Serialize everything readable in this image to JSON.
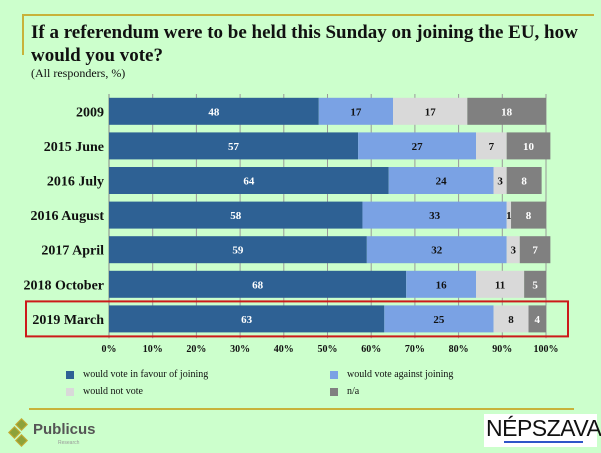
{
  "header": {
    "title": "If a referendum were to be held this Sunday on joining the EU, how would you vote?",
    "subtitle": "(All responders, %)"
  },
  "chart_data": {
    "type": "bar",
    "orientation": "horizontal",
    "stacked": true,
    "title": "If a referendum were to be held this Sunday on joining the EU, how would you vote?",
    "subtitle": "(All responders, %)",
    "categories": [
      "2009",
      "2015 June",
      "2016 July",
      "2016 August",
      "2017 April",
      "2018 October",
      "2019 March"
    ],
    "series": [
      {
        "name": "would vote in favour of  joining",
        "color": "#2e6194",
        "label_color": "#ffffff",
        "values": [
          48,
          57,
          64,
          58,
          59,
          68,
          63
        ]
      },
      {
        "name": "would vote against joining",
        "color": "#7aa2e4",
        "label_color": "#111111",
        "values": [
          17,
          27,
          24,
          33,
          32,
          16,
          25
        ]
      },
      {
        "name": "would not vote",
        "color": "#d9d9d9",
        "label_color": "#111111",
        "values": [
          17,
          7,
          3,
          1,
          3,
          11,
          8
        ]
      },
      {
        "name": "n/a",
        "color": "#808080",
        "label_color": "#ffffff",
        "values": [
          18,
          10,
          8,
          8,
          7,
          5,
          4
        ]
      }
    ],
    "xlim": [
      0,
      100
    ],
    "xticks": [
      "0%",
      "10%",
      "20%",
      "30%",
      "40%",
      "50%",
      "60%",
      "70%",
      "80%",
      "90%",
      "100%"
    ],
    "grid": true,
    "legend_position": "bottom",
    "highlighted_category": "2019 March",
    "highlight_color": "#cc1a1a"
  },
  "legend": [
    {
      "label": "would vote in favour of  joining",
      "color": "#2e6194"
    },
    {
      "label": "would vote against joining",
      "color": "#7aa2e4"
    },
    {
      "label": "would not vote",
      "color": "#d9d9d9"
    },
    {
      "label": "n/a",
      "color": "#808080"
    }
  ],
  "footer": {
    "left_logo": {
      "name": "Publicus",
      "sub": "Research"
    },
    "right_logo": {
      "name": "NÉPSZAVA"
    }
  }
}
